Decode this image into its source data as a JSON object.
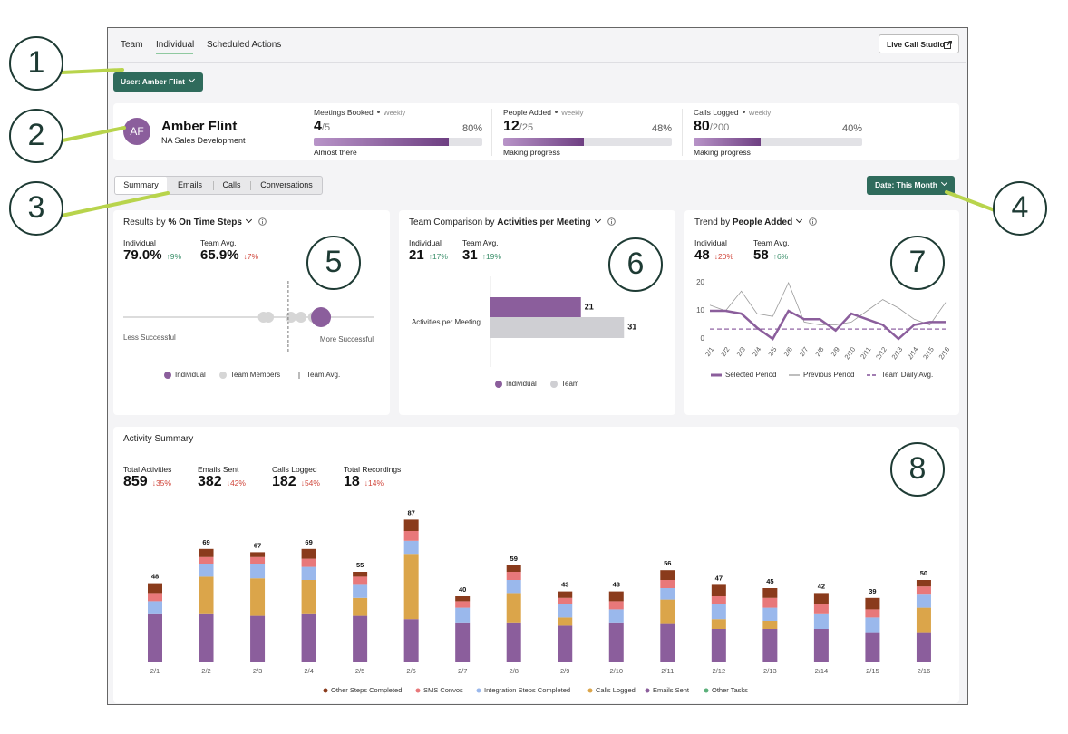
{
  "nav": {
    "tabs": [
      "Team",
      "Individual",
      "Scheduled Actions"
    ],
    "active": 1,
    "button": "Live Call Studio"
  },
  "user_button": "User: Amber Flint",
  "profile": {
    "initials": "AF",
    "name": "Amber Flint",
    "team": "NA Sales Development"
  },
  "goals": [
    {
      "title": "Meetings Booked",
      "period": "Weekly",
      "value": "4",
      "target": "/5",
      "progress": 80,
      "progress_label": "80%",
      "status": "Almost there"
    },
    {
      "title": "People Added",
      "period": "Weekly",
      "value": "12",
      "target": "/25",
      "progress": 48,
      "progress_label": "48%",
      "status": "Making progress"
    },
    {
      "title": "Calls Logged",
      "period": "Weekly",
      "value": "80",
      "target": "/200",
      "progress": 40,
      "progress_label": "40%",
      "status": "Making progress"
    }
  ],
  "view_tabs": {
    "tabs": [
      "Summary",
      "Emails",
      "Calls",
      "Conversations"
    ],
    "active": 0
  },
  "date_button": "Date: This Month",
  "callouts": [
    "1",
    "2",
    "3",
    "4",
    "5",
    "6",
    "7",
    "8"
  ],
  "results_panel": {
    "title": "Results by",
    "metric": "% On Time Steps",
    "stats": [
      {
        "label": "Individual",
        "value": "79.0%",
        "change": "↑9%"
      },
      {
        "label": "Team Avg.",
        "value": "65.9%",
        "change": "↓7%"
      }
    ],
    "chart": {
      "type": "strip",
      "xlim": [
        0,
        100
      ],
      "individual": 79.0,
      "team_avg": 65.9,
      "team_members": [
        56,
        58,
        67,
        71,
        76
      ],
      "min_label": "Less Successful",
      "max_label": "More Successful",
      "legend": [
        "Individual",
        "Team Members",
        "Team Avg."
      ],
      "colors": [
        "#8b5e9c",
        "#d6d6d6",
        "#777777"
      ]
    }
  },
  "comparison_panel": {
    "title": "Team Comparison by",
    "metric": "Activities per Meeting",
    "stats": [
      {
        "label": "Individual",
        "value": "21",
        "change": "↑17%"
      },
      {
        "label": "Team Avg.",
        "value": "31",
        "change": "↑19%"
      }
    ],
    "chart": {
      "type": "hbar",
      "categories": [
        "Activities per Meeting"
      ],
      "xlim": [
        0,
        40
      ],
      "series": [
        {
          "name": "Individual",
          "color": "#8b5e9c",
          "values": [
            21
          ]
        },
        {
          "name": "Team",
          "color": "#cfcfd3",
          "values": [
            31
          ]
        }
      ]
    }
  },
  "trend_panel": {
    "title": "Trend by",
    "metric": "People Added",
    "stats": [
      {
        "label": "Individual",
        "value": "48",
        "change": "↓20%"
      },
      {
        "label": "Team Avg.",
        "value": "58",
        "change": "↑6%"
      }
    ],
    "chart": {
      "type": "line",
      "categories": [
        "2/1",
        "2/2",
        "2/3",
        "2/4",
        "2/5",
        "2/6",
        "2/7",
        "2/8",
        "2/9",
        "2/10",
        "2/11",
        "2/12",
        "2/13",
        "2/14",
        "2/15",
        "2/16"
      ],
      "ylim": [
        0,
        20
      ],
      "yticks": [
        0,
        10,
        20
      ],
      "series": [
        {
          "name": "Selected Period",
          "color": "#8b5e9c",
          "dashed": false,
          "values": [
            10,
            10,
            9,
            4,
            0,
            10,
            7,
            7,
            3,
            9,
            7,
            5,
            0,
            5,
            6,
            6
          ]
        },
        {
          "name": "Previous Period",
          "color": "#9a9a9a",
          "dashed": false,
          "values": [
            12,
            10,
            17,
            9,
            8,
            20,
            6,
            5,
            5,
            6,
            10,
            14,
            11,
            7,
            5,
            13
          ]
        },
        {
          "name": "Team Daily Avg.",
          "color": "#a27db2",
          "dashed": true,
          "values": [
            3.5,
            3.5,
            3.5,
            3.5,
            3.5,
            3.5,
            3.5,
            3.5,
            3.5,
            3.5,
            3.5,
            3.5,
            3.5,
            3.5,
            3.5,
            3.5
          ]
        }
      ]
    }
  },
  "activity_panel": {
    "title": "Activity Summary",
    "stats": [
      {
        "label": "Total Activities",
        "value": "859",
        "change": "↓35%"
      },
      {
        "label": "Emails Sent",
        "value": "382",
        "change": "↓42%"
      },
      {
        "label": "Calls Logged",
        "value": "182",
        "change": "↓54%"
      },
      {
        "label": "Total Recordings",
        "value": "18",
        "change": "↓14%"
      }
    ],
    "chart": {
      "type": "stacked_bar",
      "categories": [
        "2/1",
        "2/2",
        "2/3",
        "2/4",
        "2/5",
        "2/6",
        "2/7",
        "2/8",
        "2/9",
        "2/10",
        "2/11",
        "2/12",
        "2/13",
        "2/14",
        "2/15",
        "2/16"
      ],
      "totals": [
        48,
        69,
        67,
        69,
        55,
        87,
        40,
        59,
        43,
        43,
        56,
        47,
        45,
        42,
        39,
        50
      ],
      "series": [
        {
          "name": "Other Steps Completed",
          "color": "#8a3b1c",
          "values": [
            6,
            5,
            3,
            6,
            3,
            7,
            3,
            4,
            4,
            6,
            6,
            7,
            6,
            7,
            7,
            4
          ]
        },
        {
          "name": "SMS Convos",
          "color": "#e8787a",
          "values": [
            5,
            4,
            4,
            5,
            5,
            6,
            4,
            5,
            4,
            5,
            5,
            5,
            6,
            6,
            5,
            5
          ]
        },
        {
          "name": "Integration Steps Completed",
          "color": "#9ab8ec",
          "values": [
            8,
            8,
            9,
            8,
            8,
            8,
            9,
            8,
            8,
            8,
            7,
            9,
            8,
            9,
            9,
            8
          ]
        },
        {
          "name": "Calls Logged",
          "color": "#dba54a",
          "values": [
            0,
            23,
            23,
            21,
            11,
            40,
            0,
            18,
            5,
            0,
            15,
            6,
            5,
            0,
            0,
            15
          ]
        },
        {
          "name": "Emails Sent",
          "color": "#8b5e9c",
          "values": [
            29,
            29,
            28,
            29,
            28,
            26,
            24,
            24,
            22,
            24,
            23,
            20,
            20,
            20,
            18,
            18
          ]
        },
        {
          "name": "Other Tasks",
          "color": "#5bb07a",
          "values": [
            0,
            0,
            0,
            0,
            0,
            0,
            0,
            0,
            0,
            0,
            0,
            0,
            0,
            0,
            0,
            0
          ]
        }
      ]
    }
  }
}
